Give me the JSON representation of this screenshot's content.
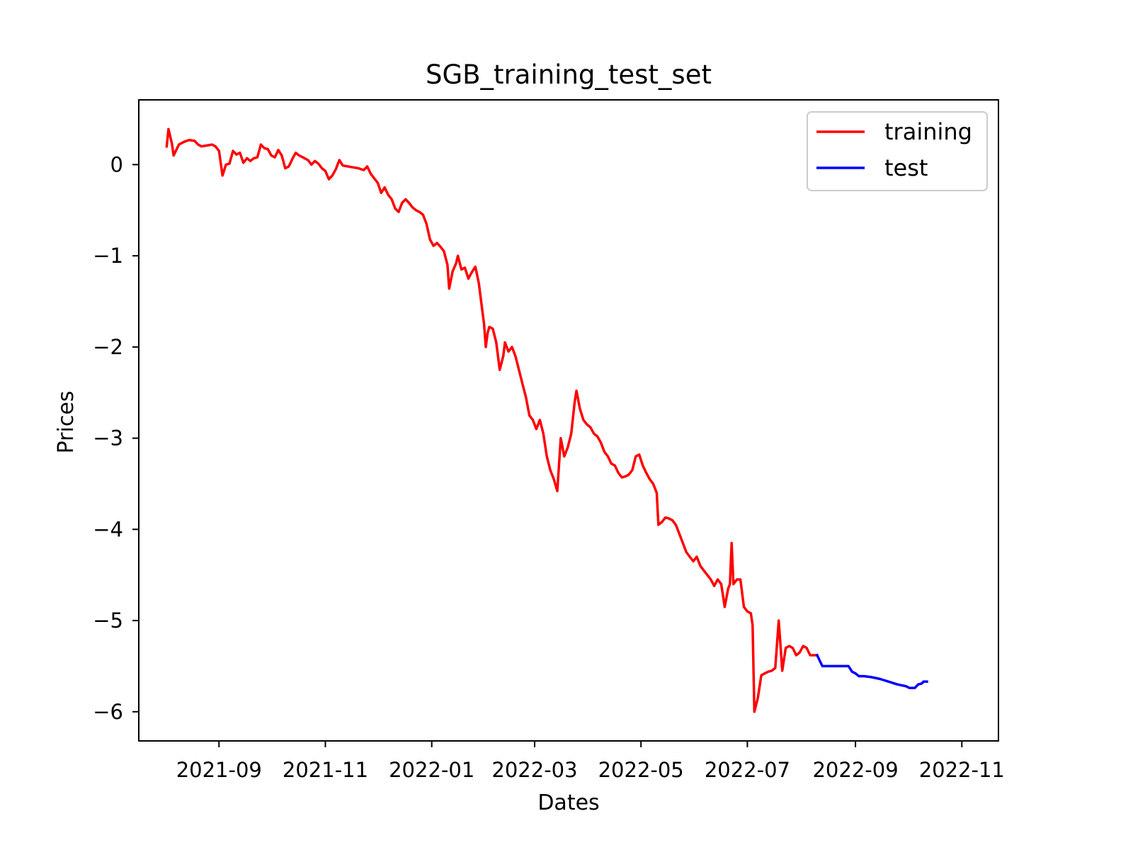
{
  "chart_data": {
    "type": "line",
    "title": "SGB_training_test_set",
    "xlabel": "Dates",
    "ylabel": "Prices",
    "x_ticks": [
      "2021-09",
      "2021-11",
      "2022-01",
      "2022-03",
      "2022-05",
      "2022-07",
      "2022-09",
      "2022-11"
    ],
    "y_ticks": [
      0,
      -1,
      -2,
      -3,
      -4,
      -5,
      -6
    ],
    "y_tick_labels": [
      "0",
      "−1",
      "−2",
      "−3",
      "−4",
      "−5",
      "−6"
    ],
    "xlim": [
      "2021-07-17",
      "2022-11-22"
    ],
    "ylim": [
      -6.32,
      0.71
    ],
    "grid": false,
    "legend_position": "top-right",
    "series": [
      {
        "name": "training",
        "color": "#ff0000",
        "points": [
          [
            "2021-08-02",
            0.2
          ],
          [
            "2021-08-03",
            0.39
          ],
          [
            "2021-08-05",
            0.23
          ],
          [
            "2021-08-06",
            0.1
          ],
          [
            "2021-08-07",
            0.14
          ],
          [
            "2021-08-09",
            0.22
          ],
          [
            "2021-08-12",
            0.25
          ],
          [
            "2021-08-15",
            0.27
          ],
          [
            "2021-08-18",
            0.26
          ],
          [
            "2021-08-20",
            0.22
          ],
          [
            "2021-08-22",
            0.2
          ],
          [
            "2021-08-25",
            0.21
          ],
          [
            "2021-08-28",
            0.22
          ],
          [
            "2021-08-30",
            0.2
          ],
          [
            "2021-09-01",
            0.15
          ],
          [
            "2021-09-03",
            -0.12
          ],
          [
            "2021-09-05",
            0.0
          ],
          [
            "2021-09-07",
            0.01
          ],
          [
            "2021-09-09",
            0.15
          ],
          [
            "2021-09-11",
            0.11
          ],
          [
            "2021-09-13",
            0.13
          ],
          [
            "2021-09-15",
            0.02
          ],
          [
            "2021-09-17",
            0.07
          ],
          [
            "2021-09-19",
            0.04
          ],
          [
            "2021-09-21",
            0.07
          ],
          [
            "2021-09-23",
            0.08
          ],
          [
            "2021-09-25",
            0.22
          ],
          [
            "2021-09-27",
            0.18
          ],
          [
            "2021-09-29",
            0.17
          ],
          [
            "2021-10-01",
            0.1
          ],
          [
            "2021-10-03",
            0.08
          ],
          [
            "2021-10-05",
            0.16
          ],
          [
            "2021-10-07",
            0.1
          ],
          [
            "2021-10-09",
            -0.04
          ],
          [
            "2021-10-11",
            -0.02
          ],
          [
            "2021-10-13",
            0.06
          ],
          [
            "2021-10-15",
            0.13
          ],
          [
            "2021-10-17",
            0.1
          ],
          [
            "2021-10-19",
            0.08
          ],
          [
            "2021-10-22",
            0.05
          ],
          [
            "2021-10-24",
            0.0
          ],
          [
            "2021-10-26",
            0.04
          ],
          [
            "2021-10-28",
            0.01
          ],
          [
            "2021-10-30",
            -0.04
          ],
          [
            "2021-11-01",
            -0.07
          ],
          [
            "2021-11-03",
            -0.16
          ],
          [
            "2021-11-05",
            -0.12
          ],
          [
            "2021-11-07",
            -0.05
          ],
          [
            "2021-11-09",
            0.05
          ],
          [
            "2021-11-11",
            -0.01
          ],
          [
            "2021-11-14",
            -0.02
          ],
          [
            "2021-11-17",
            -0.03
          ],
          [
            "2021-11-20",
            -0.04
          ],
          [
            "2021-11-23",
            -0.06
          ],
          [
            "2021-11-25",
            -0.02
          ],
          [
            "2021-11-27",
            -0.1
          ],
          [
            "2021-11-29",
            -0.15
          ],
          [
            "2021-12-01",
            -0.2
          ],
          [
            "2021-12-03",
            -0.31
          ],
          [
            "2021-12-05",
            -0.25
          ],
          [
            "2021-12-07",
            -0.33
          ],
          [
            "2021-12-09",
            -0.38
          ],
          [
            "2021-12-11",
            -0.48
          ],
          [
            "2021-12-13",
            -0.52
          ],
          [
            "2021-12-15",
            -0.42
          ],
          [
            "2021-12-17",
            -0.38
          ],
          [
            "2021-12-19",
            -0.42
          ],
          [
            "2021-12-21",
            -0.47
          ],
          [
            "2021-12-23",
            -0.5
          ],
          [
            "2021-12-25",
            -0.52
          ],
          [
            "2021-12-27",
            -0.55
          ],
          [
            "2021-12-29",
            -0.65
          ],
          [
            "2021-12-31",
            -0.82
          ],
          [
            "2022-01-02",
            -0.89
          ],
          [
            "2022-01-04",
            -0.86
          ],
          [
            "2022-01-06",
            -0.9
          ],
          [
            "2022-01-08",
            -0.95
          ],
          [
            "2022-01-10",
            -1.1
          ],
          [
            "2022-01-11",
            -1.36
          ],
          [
            "2022-01-13",
            -1.17
          ],
          [
            "2022-01-15",
            -1.08
          ],
          [
            "2022-01-16",
            -1.0
          ],
          [
            "2022-01-18",
            -1.15
          ],
          [
            "2022-01-20",
            -1.13
          ],
          [
            "2022-01-22",
            -1.25
          ],
          [
            "2022-01-24",
            -1.18
          ],
          [
            "2022-01-26",
            -1.12
          ],
          [
            "2022-01-28",
            -1.3
          ],
          [
            "2022-01-30",
            -1.6
          ],
          [
            "2022-01-31",
            -1.75
          ],
          [
            "2022-02-01",
            -2.0
          ],
          [
            "2022-02-02",
            -1.85
          ],
          [
            "2022-02-03",
            -1.78
          ],
          [
            "2022-02-05",
            -1.8
          ],
          [
            "2022-02-07",
            -1.95
          ],
          [
            "2022-02-09",
            -2.25
          ],
          [
            "2022-02-11",
            -2.1
          ],
          [
            "2022-02-12",
            -1.95
          ],
          [
            "2022-02-14",
            -2.05
          ],
          [
            "2022-02-16",
            -2.0
          ],
          [
            "2022-02-18",
            -2.1
          ],
          [
            "2022-02-20",
            -2.25
          ],
          [
            "2022-02-22",
            -2.4
          ],
          [
            "2022-02-24",
            -2.55
          ],
          [
            "2022-02-26",
            -2.75
          ],
          [
            "2022-02-28",
            -2.8
          ],
          [
            "2022-03-02",
            -2.9
          ],
          [
            "2022-03-04",
            -2.8
          ],
          [
            "2022-03-06",
            -2.95
          ],
          [
            "2022-03-08",
            -3.2
          ],
          [
            "2022-03-10",
            -3.35
          ],
          [
            "2022-03-12",
            -3.45
          ],
          [
            "2022-03-14",
            -3.58
          ],
          [
            "2022-03-16",
            -3.0
          ],
          [
            "2022-03-18",
            -3.2
          ],
          [
            "2022-03-20",
            -3.1
          ],
          [
            "2022-03-22",
            -2.95
          ],
          [
            "2022-03-24",
            -2.6
          ],
          [
            "2022-03-25",
            -2.48
          ],
          [
            "2022-03-27",
            -2.68
          ],
          [
            "2022-03-29",
            -2.8
          ],
          [
            "2022-03-31",
            -2.85
          ],
          [
            "2022-04-02",
            -2.88
          ],
          [
            "2022-04-04",
            -2.95
          ],
          [
            "2022-04-06",
            -2.98
          ],
          [
            "2022-04-08",
            -3.05
          ],
          [
            "2022-04-10",
            -3.15
          ],
          [
            "2022-04-12",
            -3.2
          ],
          [
            "2022-04-14",
            -3.28
          ],
          [
            "2022-04-16",
            -3.3
          ],
          [
            "2022-04-18",
            -3.38
          ],
          [
            "2022-04-20",
            -3.43
          ],
          [
            "2022-04-22",
            -3.42
          ],
          [
            "2022-04-24",
            -3.4
          ],
          [
            "2022-04-26",
            -3.35
          ],
          [
            "2022-04-28",
            -3.2
          ],
          [
            "2022-04-30",
            -3.18
          ],
          [
            "2022-05-02",
            -3.3
          ],
          [
            "2022-05-04",
            -3.38
          ],
          [
            "2022-05-06",
            -3.45
          ],
          [
            "2022-05-08",
            -3.5
          ],
          [
            "2022-05-10",
            -3.6
          ],
          [
            "2022-05-11",
            -3.95
          ],
          [
            "2022-05-13",
            -3.92
          ],
          [
            "2022-05-15",
            -3.87
          ],
          [
            "2022-05-17",
            -3.88
          ],
          [
            "2022-05-19",
            -3.9
          ],
          [
            "2022-05-21",
            -3.95
          ],
          [
            "2022-05-23",
            -4.05
          ],
          [
            "2022-05-25",
            -4.15
          ],
          [
            "2022-05-27",
            -4.25
          ],
          [
            "2022-05-29",
            -4.3
          ],
          [
            "2022-05-31",
            -4.35
          ],
          [
            "2022-06-02",
            -4.3
          ],
          [
            "2022-06-04",
            -4.4
          ],
          [
            "2022-06-06",
            -4.45
          ],
          [
            "2022-06-08",
            -4.5
          ],
          [
            "2022-06-10",
            -4.55
          ],
          [
            "2022-06-12",
            -4.62
          ],
          [
            "2022-06-14",
            -4.55
          ],
          [
            "2022-06-16",
            -4.6
          ],
          [
            "2022-06-18",
            -4.85
          ],
          [
            "2022-06-20",
            -4.65
          ],
          [
            "2022-06-21",
            -4.6
          ],
          [
            "2022-06-22",
            -4.15
          ],
          [
            "2022-06-23",
            -4.6
          ],
          [
            "2022-06-25",
            -4.55
          ],
          [
            "2022-06-27",
            -4.55
          ],
          [
            "2022-06-29",
            -4.85
          ],
          [
            "2022-07-01",
            -4.9
          ],
          [
            "2022-07-03",
            -4.92
          ],
          [
            "2022-07-04",
            -5.05
          ],
          [
            "2022-07-05",
            -6.0
          ],
          [
            "2022-07-07",
            -5.85
          ],
          [
            "2022-07-09",
            -5.6
          ],
          [
            "2022-07-11",
            -5.58
          ],
          [
            "2022-07-13",
            -5.56
          ],
          [
            "2022-07-15",
            -5.55
          ],
          [
            "2022-07-17",
            -5.52
          ],
          [
            "2022-07-19",
            -5.0
          ],
          [
            "2022-07-21",
            -5.55
          ],
          [
            "2022-07-23",
            -5.3
          ],
          [
            "2022-07-25",
            -5.28
          ],
          [
            "2022-07-27",
            -5.3
          ],
          [
            "2022-07-29",
            -5.38
          ],
          [
            "2022-07-31",
            -5.35
          ],
          [
            "2022-08-02",
            -5.28
          ],
          [
            "2022-08-04",
            -5.3
          ],
          [
            "2022-08-06",
            -5.38
          ],
          [
            "2022-08-10",
            -5.38
          ]
        ]
      },
      {
        "name": "test",
        "color": "#0000ff",
        "points": [
          [
            "2022-08-10",
            -5.38
          ],
          [
            "2022-08-13",
            -5.5
          ],
          [
            "2022-08-16",
            -5.5
          ],
          [
            "2022-08-20",
            -5.5
          ],
          [
            "2022-08-25",
            -5.5
          ],
          [
            "2022-08-28",
            -5.5
          ],
          [
            "2022-08-30",
            -5.56
          ],
          [
            "2022-09-01",
            -5.58
          ],
          [
            "2022-09-03",
            -5.61
          ],
          [
            "2022-09-06",
            -5.61
          ],
          [
            "2022-09-10",
            -5.62
          ],
          [
            "2022-09-15",
            -5.64
          ],
          [
            "2022-09-20",
            -5.67
          ],
          [
            "2022-09-25",
            -5.7
          ],
          [
            "2022-09-30",
            -5.72
          ],
          [
            "2022-10-02",
            -5.74
          ],
          [
            "2022-10-05",
            -5.74
          ],
          [
            "2022-10-07",
            -5.7
          ],
          [
            "2022-10-09",
            -5.69
          ],
          [
            "2022-10-10",
            -5.67
          ],
          [
            "2022-10-12",
            -5.67
          ]
        ]
      }
    ]
  }
}
